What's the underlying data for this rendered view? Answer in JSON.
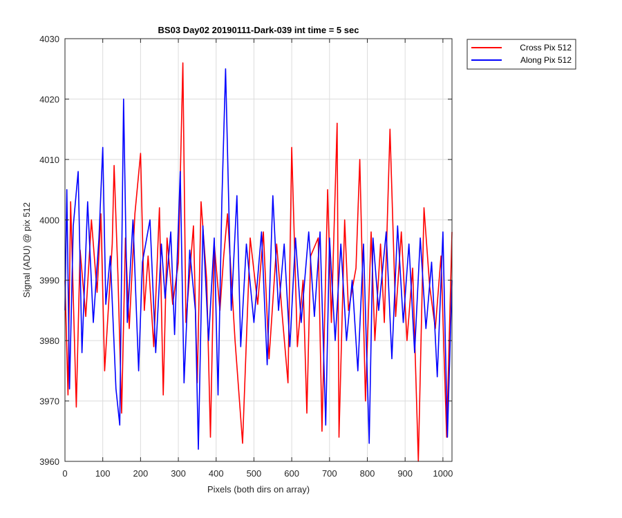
{
  "chart_data": {
    "type": "line",
    "title": "BS03 Day02 20190111-Dark-039 int time = 5 sec",
    "xlabel": "Pixels (both dirs on array)",
    "ylabel": "Signal (ADU) @ pix 512",
    "xlim": [
      0,
      1024
    ],
    "ylim": [
      3960,
      4030
    ],
    "xticks": [
      0,
      100,
      200,
      300,
      400,
      500,
      600,
      700,
      800,
      900,
      1000
    ],
    "yticks": [
      3960,
      3970,
      3980,
      3990,
      4000,
      4010,
      4020,
      4030
    ],
    "grid": true,
    "legend_position": "outside-top-right",
    "series": [
      {
        "name": "Cross Pix 512",
        "color": "#ff0000",
        "x": [
          0,
          8,
          15,
          30,
          40,
          55,
          70,
          85,
          95,
          105,
          125,
          130,
          140,
          150,
          160,
          170,
          185,
          200,
          210,
          220,
          235,
          250,
          260,
          270,
          285,
          300,
          312,
          320,
          340,
          350,
          360,
          375,
          385,
          395,
          410,
          420,
          430,
          450,
          470,
          490,
          510,
          525,
          540,
          560,
          575,
          590,
          600,
          615,
          630,
          640,
          650,
          670,
          680,
          695,
          705,
          720,
          725,
          740,
          750,
          770,
          780,
          795,
          810,
          820,
          835,
          845,
          860,
          875,
          890,
          905,
          920,
          935,
          950,
          965,
          980,
          995,
          1010,
          1024
        ],
        "y": [
          3990,
          3971,
          4003,
          3969,
          3995,
          3984,
          4000,
          3988,
          4001,
          3975,
          3996,
          4009,
          3991,
          3968,
          3997,
          3982,
          4001,
          4011,
          3985,
          3994,
          3979,
          4002,
          3971,
          3997,
          3986,
          3993,
          4026,
          3983,
          3999,
          3973,
          4003,
          3990,
          3964,
          3996,
          3985,
          3994,
          4001,
          3980,
          3963,
          3997,
          3986,
          3998,
          3977,
          3996,
          3984,
          3973,
          4012,
          3979,
          3990,
          3968,
          3994,
          3997,
          3965,
          4005,
          3983,
          4016,
          3964,
          4000,
          3985,
          3992,
          4010,
          3970,
          3998,
          3980,
          3996,
          3983,
          4015,
          3984,
          3998,
          3980,
          3992,
          3960,
          4002,
          3989,
          3982,
          3994,
          3964,
          3998
        ]
      },
      {
        "name": "Along Pix 512",
        "color": "#0000ff",
        "x": [
          0,
          5,
          12,
          22,
          35,
          45,
          60,
          75,
          90,
          100,
          108,
          120,
          135,
          145,
          155,
          165,
          180,
          195,
          205,
          225,
          240,
          255,
          265,
          280,
          290,
          305,
          315,
          330,
          345,
          353,
          365,
          380,
          395,
          405,
          415,
          425,
          440,
          455,
          465,
          480,
          500,
          520,
          535,
          550,
          565,
          580,
          595,
          610,
          625,
          645,
          660,
          675,
          690,
          700,
          715,
          730,
          745,
          760,
          775,
          790,
          805,
          815,
          830,
          850,
          865,
          880,
          895,
          910,
          925,
          940,
          955,
          970,
          985,
          1000,
          1012,
          1024
        ],
        "y": [
          3985,
          4005,
          3972,
          3999,
          4008,
          3978,
          4003,
          3983,
          3997,
          4012,
          3986,
          3994,
          3972,
          3966,
          4020,
          3983,
          4000,
          3975,
          3993,
          4000,
          3978,
          3996,
          3987,
          3998,
          3981,
          4008,
          3973,
          3995,
          3985,
          3962,
          3999,
          3980,
          3997,
          3971,
          4003,
          4025,
          3985,
          4004,
          3979,
          3996,
          3983,
          3998,
          3976,
          4004,
          3985,
          3996,
          3979,
          3997,
          3983,
          3998,
          3984,
          3998,
          3966,
          3997,
          3980,
          3996,
          3980,
          3990,
          3975,
          3996,
          3963,
          3997,
          3985,
          3998,
          3977,
          3999,
          3983,
          3996,
          3978,
          3997,
          3982,
          3993,
          3974,
          3998,
          3964,
          3990
        ]
      }
    ]
  }
}
